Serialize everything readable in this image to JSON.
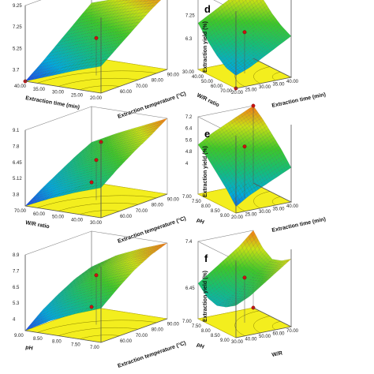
{
  "chart_data": [
    {
      "id": "a",
      "type": "surface",
      "panel_label": "",
      "xlabel": "Extraction temperature (°C)",
      "ylabel": "Extraction time (min)",
      "zlabel": "",
      "x_ticks": [
        "60.00",
        "70.00",
        "80.00",
        "90.00"
      ],
      "y_ticks": [
        "40.00",
        "35.00",
        "30.00",
        "25.00",
        "20.00"
      ],
      "z_ticks": [
        "9.25",
        "7.25",
        "5.25",
        "3.7"
      ],
      "x_range": [
        50,
        90
      ],
      "y_range": [
        20,
        40
      ],
      "z_range": [
        3.7,
        10.2
      ],
      "grid": [
        [
          3.7,
          4.8,
          6.0,
          7.2,
          8.4
        ],
        [
          4.5,
          5.6,
          6.8,
          8.0,
          9.1
        ],
        [
          5.3,
          6.4,
          7.5,
          8.7,
          9.7
        ],
        [
          6.0,
          7.1,
          8.2,
          9.3,
          10.2
        ]
      ],
      "design_points": [
        {
          "x": 70,
          "y": 30,
          "z": 6.9
        },
        {
          "x": 90,
          "y": 40,
          "z": 10.2
        },
        {
          "x": 50,
          "y": 20,
          "z": 3.7
        }
      ]
    },
    {
      "id": "b",
      "type": "surface",
      "panel_label": "",
      "xlabel": "Extraction temperature (°C)",
      "ylabel": "W/R ratio",
      "zlabel": "",
      "x_ticks": [
        "60.00",
        "70.00",
        "80.00",
        "90.00"
      ],
      "y_ticks": [
        "70.00",
        "60.00",
        "50.00",
        "40.00",
        "30.00"
      ],
      "z_ticks": [
        "9.1",
        "7.8",
        "6.45",
        "5.12",
        "3.8"
      ],
      "x_range": [
        50,
        90
      ],
      "y_range": [
        30,
        70
      ],
      "z_range": [
        3.8,
        9.1
      ],
      "grid": [
        [
          3.8,
          4.6,
          5.3,
          6.0,
          6.6
        ],
        [
          4.6,
          5.4,
          6.2,
          6.9,
          7.5
        ],
        [
          5.3,
          6.1,
          6.9,
          7.6,
          8.3
        ],
        [
          5.9,
          6.8,
          7.6,
          8.3,
          9.1
        ]
      ],
      "design_points": [
        {
          "x": 70,
          "y": 50,
          "z": 6.6
        },
        {
          "x": 90,
          "y": 30,
          "z": 9.1
        },
        {
          "x": 50,
          "y": 70,
          "z": 3.8
        }
      ]
    },
    {
      "id": "c",
      "type": "surface",
      "panel_label": "",
      "xlabel": "Extraction temperature (°C)",
      "ylabel": "pH",
      "zlabel": "",
      "x_ticks": [
        "60.00",
        "70.00",
        "80.00",
        "90.00"
      ],
      "y_ticks": [
        "9.00",
        "8.50",
        "8.00",
        "7.50",
        "7.00"
      ],
      "z_ticks": [
        "8.9",
        "7.7",
        "6.5",
        "5.3",
        "4"
      ],
      "x_range": [
        50,
        90
      ],
      "y_range": [
        7,
        9
      ],
      "z_range": [
        4,
        8.9
      ],
      "grid": [
        [
          4.0,
          4.9,
          5.6,
          6.2,
          6.6
        ],
        [
          4.9,
          5.8,
          6.6,
          7.2,
          7.6
        ],
        [
          5.6,
          6.5,
          7.3,
          7.9,
          8.3
        ],
        [
          6.2,
          7.1,
          7.9,
          8.5,
          8.9
        ]
      ],
      "design_points": [
        {
          "x": 70,
          "y": 8,
          "z": 7.2
        },
        {
          "x": 50,
          "y": 9,
          "z": 4.0
        }
      ]
    },
    {
      "id": "d",
      "type": "surface",
      "panel_label": "d",
      "xlabel": "Extraction time (min)",
      "ylabel": "W/R ratio",
      "zlabel": "Extraction yield (%)",
      "x_ticks": [
        "20.00",
        "25.00",
        "30.00",
        "35.00",
        "40.00"
      ],
      "y_ticks": [
        "70.00",
        "60.00",
        "50.00",
        "40.00",
        "30.00"
      ],
      "z_ticks": [
        "8.2",
        "7.25",
        "6.3"
      ],
      "x_range": [
        20,
        40
      ],
      "y_range": [
        30,
        70
      ],
      "z_range": [
        5.6,
        8.6
      ],
      "grid": [
        [
          6.1,
          6.2,
          6.5,
          6.9,
          7.4
        ],
        [
          6.3,
          6.5,
          6.8,
          7.2,
          7.7
        ],
        [
          6.6,
          6.8,
          7.1,
          7.5,
          8.0
        ],
        [
          6.9,
          7.1,
          7.4,
          7.8,
          8.3
        ],
        [
          7.2,
          7.4,
          7.7,
          8.1,
          8.6
        ]
      ],
      "design_points": [
        {
          "x": 30,
          "y": 50,
          "z": 7.2
        },
        {
          "x": 20,
          "y": 70,
          "z": 5.6
        }
      ]
    },
    {
      "id": "e",
      "type": "surface",
      "panel_label": "e",
      "xlabel": "Extraction time (min)",
      "ylabel": "pH",
      "zlabel": "Extraction yield (%)",
      "x_ticks": [
        "20.00",
        "25.00",
        "30.00",
        "35.00",
        "40.00"
      ],
      "y_ticks": [
        "9.00",
        "8.50",
        "8.00",
        "7.50",
        "7.00"
      ],
      "z_ticks": [
        "7.2",
        "6.4",
        "5.6",
        "4.8",
        "4"
      ],
      "x_range": [
        20,
        40
      ],
      "y_range": [
        7,
        9
      ],
      "z_range": [
        4,
        7.6
      ],
      "grid": [
        [
          4.3,
          4.9,
          5.4,
          5.9,
          6.3
        ],
        [
          4.7,
          5.3,
          5.8,
          6.3,
          6.7
        ],
        [
          5.0,
          5.6,
          6.1,
          6.6,
          7.0
        ],
        [
          5.3,
          5.9,
          6.4,
          6.9,
          7.3
        ],
        [
          5.6,
          6.2,
          6.7,
          7.2,
          7.6
        ]
      ],
      "design_points": [
        {
          "x": 30,
          "y": 8,
          "z": 6.4
        },
        {
          "x": 40,
          "y": 7,
          "z": 7.6
        }
      ]
    },
    {
      "id": "f",
      "type": "surface",
      "panel_label": "f",
      "xlabel": "W/R",
      "ylabel": "pH",
      "zlabel": "Extraction yield (%)",
      "x_ticks": [
        "30.00",
        "40.00",
        "50.00",
        "60.00",
        "70.00"
      ],
      "y_ticks": [
        "9.00",
        "8.50",
        "8.00",
        "7.50",
        "7.00"
      ],
      "z_ticks": [
        "7.4",
        "6.45"
      ],
      "x_range": [
        30,
        70
      ],
      "y_range": [
        7,
        9
      ],
      "z_range": [
        5.2,
        7.6
      ],
      "grid": [
        [
          6.2,
          6.0,
          5.9,
          6.0,
          6.3
        ],
        [
          6.4,
          6.2,
          6.1,
          6.2,
          6.6
        ],
        [
          6.7,
          6.5,
          6.4,
          6.5,
          6.9
        ],
        [
          7.0,
          6.8,
          6.7,
          6.8,
          7.2
        ],
        [
          7.3,
          7.1,
          7.0,
          7.2,
          7.6
        ]
      ],
      "design_points": [
        {
          "x": 50,
          "y": 8,
          "z": 6.6
        },
        {
          "x": 70,
          "y": 7,
          "z": 5.2
        }
      ]
    }
  ]
}
